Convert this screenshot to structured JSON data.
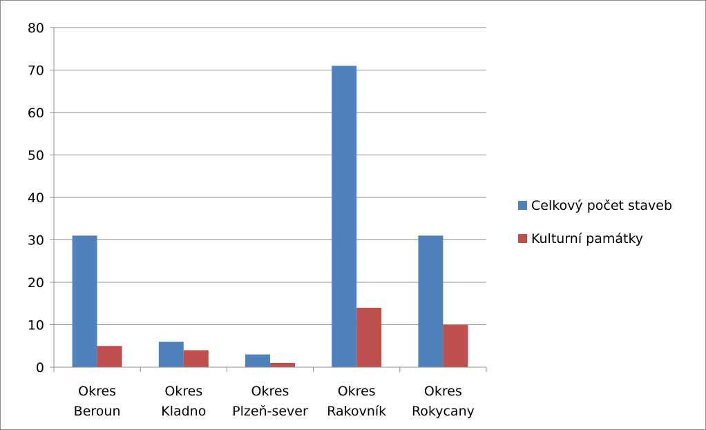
{
  "chart_data": {
    "type": "bar",
    "categories": [
      [
        "Okres",
        "Beroun"
      ],
      [
        "Okres",
        "Kladno"
      ],
      [
        "Okres",
        "Plzeň-sever"
      ],
      [
        "Okres",
        "Rakovník"
      ],
      [
        "Okres",
        "Rokycany"
      ]
    ],
    "series": [
      {
        "name": "Celkový počet staveb",
        "color": "#4f81bd",
        "values": [
          31,
          6,
          3,
          71,
          31
        ]
      },
      {
        "name": "Kulturní památky",
        "color": "#c0504d",
        "values": [
          5,
          4,
          1,
          14,
          10
        ]
      }
    ],
    "ylim": [
      0,
      80
    ],
    "yticks": [
      0,
      10,
      20,
      30,
      40,
      50,
      60,
      70,
      80
    ],
    "grid": true,
    "legend_position": "right",
    "title": "",
    "xlabel": "",
    "ylabel": ""
  }
}
